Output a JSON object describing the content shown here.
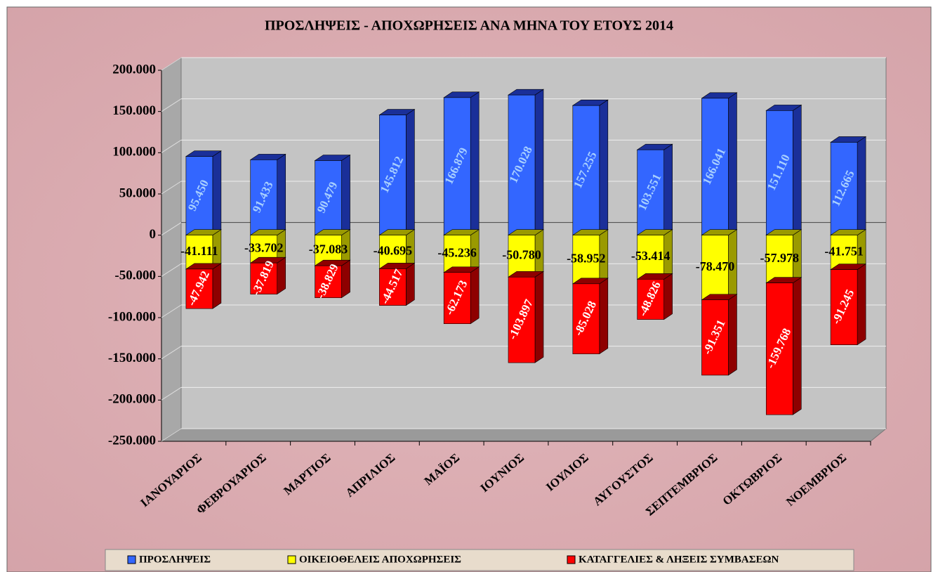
{
  "chart_data": {
    "type": "bar3d_stacked",
    "title": "ΠΡΟΣΛΗΨΕΙΣ - ΑΠΟΧΩΡΗΣΕΙΣ ΑΝΑ ΜΗΝΑ ΤΟΥ ΕΤΟΥΣ 2014",
    "categories": [
      "ΙΑΝΟΥΑΡΙΟΣ",
      "ΦΕΒΡΟΥΑΡΙΟΣ",
      "ΜΑΡΤΙΟΣ",
      "ΑΠΡΙΛΙΟΣ",
      "ΜΑΪΟΣ",
      "ΙΟΥΝΙΟΣ",
      "ΙΟΥΛΙΟΣ",
      "ΑΥΓΟΥΣΤΟΣ",
      "ΣΕΠΤΕΜΒΡΙΟΣ",
      "ΟΚΤΩΒΡΙΟΣ",
      "ΝΟΕΜΒΡΙΟΣ"
    ],
    "series": [
      {
        "name": "ΠΡΟΣΛΗΨΕΙΣ",
        "color": "#3366ff",
        "side_color": "#1a2f99",
        "label_color": "#a8d0ff",
        "values": [
          95450,
          91433,
          90479,
          145812,
          166879,
          170028,
          157255,
          103551,
          166041,
          151110,
          112665
        ],
        "value_labels": [
          "95.450",
          "91.433",
          "90.479",
          "145.812",
          "166.879",
          "170.028",
          "157.255",
          "103.551",
          "166.041",
          "151.110",
          "112.665"
        ]
      },
      {
        "name": "ΟΙΚΕΙΟΘΕΛΕΙΣ ΑΠΟΧΩΡΗΣΕΙΣ",
        "color": "#ffff00",
        "side_color": "#9a9a00",
        "label_color": "#000000",
        "values": [
          -41111,
          -33702,
          -37083,
          -40695,
          -45236,
          -50780,
          -58952,
          -53414,
          -78470,
          -57978,
          -41751
        ],
        "value_labels": [
          "-41.111",
          "-33.702",
          "-37.083",
          "-40.695",
          "-45.236",
          "-50.780",
          "-58.952",
          "-53.414",
          "-78.470",
          "-57.978",
          "-41.751"
        ]
      },
      {
        "name": "ΚΑΤΑΓΓΕΛΙΕΣ & ΛΗΞΕΙΣ ΣΥΜΒΑΣΕΩΝ",
        "color": "#ff0000",
        "side_color": "#8e0000",
        "label_color": "#ffffff",
        "values": [
          -47942,
          -37819,
          -38829,
          -44517,
          -62173,
          -103897,
          -85028,
          -48826,
          -91351,
          -159768,
          -91245
        ],
        "value_labels": [
          "-47.942",
          "-37.819",
          "-38.829",
          "-44.517",
          "-62.173",
          "-103.897",
          "-85.028",
          "-48.826",
          "-91.351",
          "-159.768",
          "-91.245"
        ]
      }
    ],
    "ylim": [
      -250000,
      200000
    ],
    "yticks": [
      {
        "value": 200000,
        "label": "200.000"
      },
      {
        "value": 150000,
        "label": "150.000"
      },
      {
        "value": 100000,
        "label": "100.000"
      },
      {
        "value": 50000,
        "label": "50.000"
      },
      0,
      {
        "value": -50000,
        "label": "-50.000"
      },
      {
        "value": -100000,
        "label": "-100.000"
      },
      {
        "value": -150000,
        "label": "-150.000"
      },
      {
        "value": -200000,
        "label": "-200.000"
      },
      {
        "value": -250000,
        "label": "-250.000"
      }
    ],
    "grid": true
  }
}
